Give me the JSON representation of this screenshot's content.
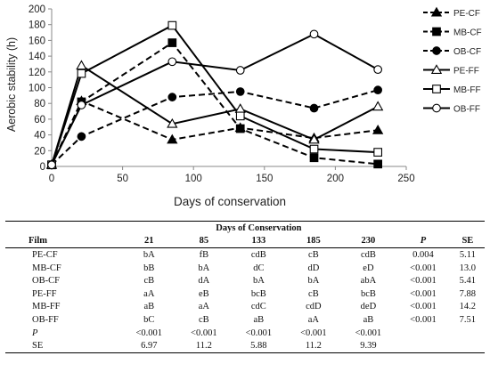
{
  "chart_data": {
    "type": "line",
    "xlabel": "Days of conservation",
    "ylabel": "Aerobic stability (h)",
    "xlim": [
      0,
      250
    ],
    "ylim": [
      0,
      200
    ],
    "xticks": [
      0,
      50,
      100,
      150,
      200,
      250
    ],
    "yticks": [
      0,
      20,
      40,
      60,
      80,
      100,
      120,
      140,
      160,
      180,
      200
    ],
    "grid": false,
    "legend_position": "right",
    "series": [
      {
        "name": "PE-CF",
        "marker": "triangle-filled",
        "dash": true,
        "points": [
          [
            0,
            2
          ],
          [
            21,
            83
          ],
          [
            85,
            34
          ],
          [
            133,
            49
          ],
          [
            185,
            36
          ],
          [
            230,
            46
          ]
        ]
      },
      {
        "name": "MB-CF",
        "marker": "square-filled",
        "dash": true,
        "points": [
          [
            0,
            2
          ],
          [
            21,
            82
          ],
          [
            85,
            157
          ],
          [
            133,
            48
          ],
          [
            185,
            11
          ],
          [
            230,
            3
          ]
        ]
      },
      {
        "name": "OB-CF",
        "marker": "circle-filled",
        "dash": true,
        "points": [
          [
            0,
            2
          ],
          [
            21,
            38
          ],
          [
            85,
            88
          ],
          [
            133,
            95
          ],
          [
            185,
            74
          ],
          [
            230,
            97
          ]
        ]
      },
      {
        "name": "PE-FF",
        "marker": "triangle-open",
        "dash": false,
        "points": [
          [
            0,
            2
          ],
          [
            21,
            128
          ],
          [
            85,
            54
          ],
          [
            133,
            73
          ],
          [
            185,
            34
          ],
          [
            230,
            76
          ]
        ]
      },
      {
        "name": "MB-FF",
        "marker": "square-open",
        "dash": false,
        "points": [
          [
            0,
            2
          ],
          [
            21,
            118
          ],
          [
            85,
            179
          ],
          [
            133,
            64
          ],
          [
            185,
            22
          ],
          [
            230,
            18
          ]
        ]
      },
      {
        "name": "OB-FF",
        "marker": "circle-open",
        "dash": false,
        "points": [
          [
            0,
            2
          ],
          [
            21,
            78
          ],
          [
            85,
            133
          ],
          [
            133,
            122
          ],
          [
            185,
            168
          ],
          [
            230,
            123
          ]
        ]
      }
    ]
  },
  "table": {
    "super_header": "Days of Conservation",
    "columns": [
      "Film",
      "21",
      "85",
      "133",
      "185",
      "230",
      "P",
      "SE"
    ],
    "rows": [
      [
        "PE-CF",
        "bA",
        "fB",
        "cdB",
        "cB",
        "cdB",
        "0.004",
        "5.11"
      ],
      [
        "MB-CF",
        "bB",
        "bA",
        "dC",
        "dD",
        "eD",
        "<0.001",
        "13.0"
      ],
      [
        "OB-CF",
        "cB",
        "dA",
        "bA",
        "bA",
        "abA",
        "<0.001",
        "5.41"
      ],
      [
        "PE-FF",
        "aA",
        "eB",
        "bcB",
        "cB",
        "bcB",
        "<0.001",
        "7.88"
      ],
      [
        "MB-FF",
        "aB",
        "aA",
        "cdC",
        "cdD",
        "deD",
        "<0.001",
        "14.2"
      ],
      [
        "OB-FF",
        "bC",
        "cB",
        "aB",
        "aA",
        "aB",
        "<0.001",
        "7.51"
      ],
      [
        "P",
        "<0.001",
        "<0.001",
        "<0.001",
        "<0.001",
        "<0.001",
        "",
        ""
      ],
      [
        "SE",
        "6.97",
        "11.2",
        "5.88",
        "11.2",
        "9.39",
        "",
        ""
      ]
    ]
  }
}
